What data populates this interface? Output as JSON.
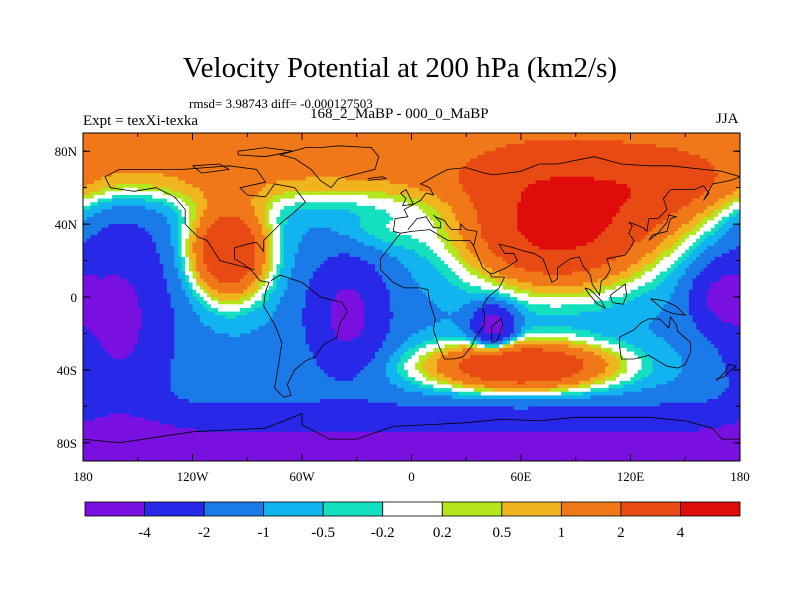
{
  "title": "Velocity Potential at 200 hPa (km2/s)",
  "stats_text": "rmsd= 3.98743 diff= -0.000127503",
  "left_label": "Expt = texXi-texka",
  "center_label": "168_2_MaBP - 000_0_MaBP",
  "right_label": "JJA",
  "chart_data": {
    "type": "heatmap",
    "title": "Velocity Potential at 200 hPa (km2/s)",
    "projection": "cylindrical-equidistant",
    "xlim": [
      -180,
      180
    ],
    "ylim": [
      -90,
      90
    ],
    "x_ticks": [
      {
        "value": -180,
        "label": "180"
      },
      {
        "value": -120,
        "label": "120W"
      },
      {
        "value": -60,
        "label": "60W"
      },
      {
        "value": 0,
        "label": "0"
      },
      {
        "value": 60,
        "label": "60E"
      },
      {
        "value": 120,
        "label": "120E"
      },
      {
        "value": 180,
        "label": "180"
      }
    ],
    "y_ticks": [
      {
        "value": 80,
        "label": "80N"
      },
      {
        "value": 40,
        "label": "40N"
      },
      {
        "value": 0,
        "label": "0"
      },
      {
        "value": -40,
        "label": "40S"
      },
      {
        "value": -80,
        "label": "80S"
      }
    ],
    "levels": [
      -4,
      -2,
      -1,
      -0.5,
      -0.2,
      0.2,
      0.5,
      1,
      2,
      4
    ],
    "level_labels": [
      "-4",
      "-2",
      "-1",
      "-0.5",
      "-0.2",
      "0.2",
      "0.5",
      "1",
      "2",
      "4"
    ],
    "colors": [
      "#7a10e0",
      "#2828e8",
      "#1a7ae8",
      "#12b4f0",
      "#14e0c0",
      "#ffffff",
      "#b4e61e",
      "#f0b41e",
      "#f07818",
      "#e84a14",
      "#e00c0c"
    ],
    "features": [
      {
        "name": "northern-high-latitude-band",
        "lon": [
          -180,
          180
        ],
        "lat": [
          60,
          90
        ],
        "value": 1.5
      },
      {
        "name": "north-america-maximum",
        "lon": -100,
        "lat": 25,
        "value": 3.5
      },
      {
        "name": "asia-maximum",
        "lon": 80,
        "lat": 35,
        "value": 4.5
      },
      {
        "name": "south-indian-ocean-high",
        "lon": 60,
        "lat": -40,
        "value": 2.5
      },
      {
        "name": "pacific-minimum",
        "lon": -160,
        "lat": -10,
        "value": -4.5
      },
      {
        "name": "atlantic-minimum",
        "lon": -35,
        "lat": -10,
        "value": -4.5
      },
      {
        "name": "africa-low",
        "lon": 45,
        "lat": -15,
        "value": -3
      },
      {
        "name": "west-pacific-minimum",
        "lon": 170,
        "lat": 0,
        "value": -4.5
      },
      {
        "name": "southern-ocean-band",
        "lon": [
          -180,
          180
        ],
        "lat": [
          -90,
          -60
        ],
        "value": -2.5
      }
    ]
  }
}
